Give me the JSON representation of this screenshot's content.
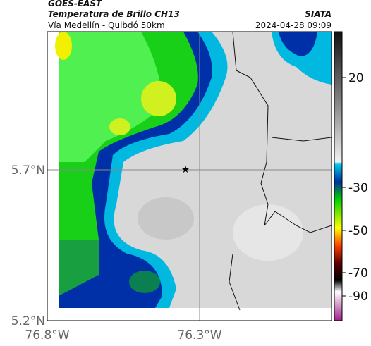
{
  "header": {
    "title": "GOES-EAST",
    "subtitle": "Temperatura de Brillo CH13",
    "source": "SIATA",
    "caption": "Vía Medellín - Quibdó 50km",
    "timestamp": "2024-04-28 09:09"
  },
  "map": {
    "lat_ticks": [
      "5.7°N",
      "5.2°N"
    ],
    "lon_ticks": [
      "76.8°W",
      "76.3°W"
    ]
  },
  "colorbar": {
    "ticks": [
      "20",
      "-30",
      "-50",
      "-70",
      "-90"
    ]
  }
}
